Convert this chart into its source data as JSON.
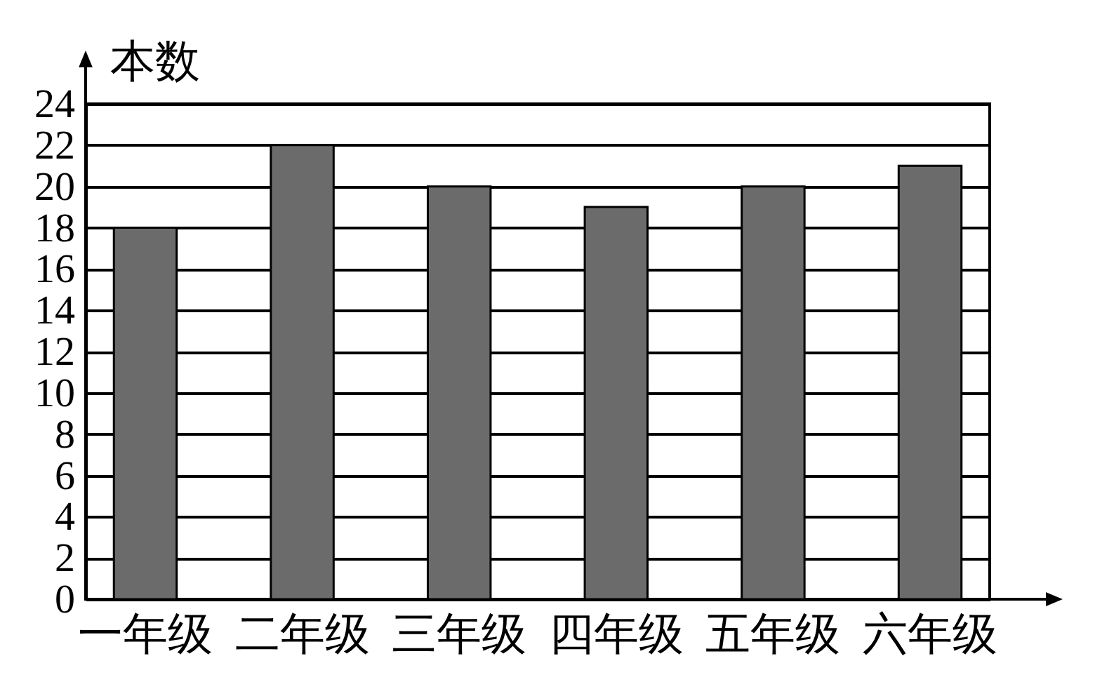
{
  "chart_data": {
    "type": "bar",
    "ylabel": "本数",
    "categories": [
      "一年级",
      "二年级",
      "三年级",
      "四年级",
      "五年级",
      "六年级"
    ],
    "values": [
      18,
      22,
      20,
      19,
      20,
      21
    ],
    "color": "#6b6b6b",
    "ylim": [
      0,
      24
    ],
    "yticks": [
      0,
      2,
      4,
      6,
      8,
      10,
      12,
      14,
      16,
      18,
      20,
      22,
      24
    ],
    "grid": "y"
  }
}
